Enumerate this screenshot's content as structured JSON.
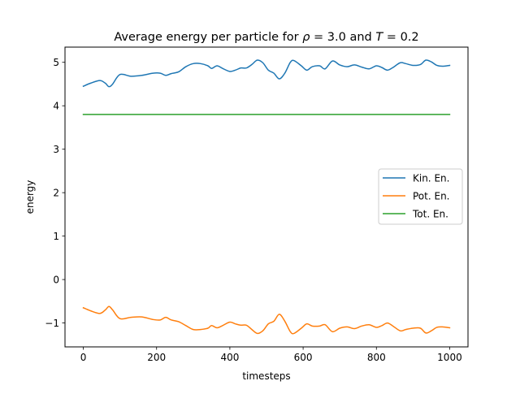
{
  "chart_data": {
    "type": "line",
    "title_parts": {
      "prefix": "Average energy per particle for ",
      "rho_symbol": "ρ",
      "rho_value": " = 3.0 and ",
      "t_symbol": "T",
      "t_value": " = 0.2"
    },
    "xlabel": "timesteps",
    "ylabel": "energy",
    "xlim": [
      -50,
      1050
    ],
    "ylim": [
      -1.55,
      5.35
    ],
    "x_ticks": [
      0,
      200,
      400,
      600,
      800,
      1000
    ],
    "x_tick_labels": [
      "0",
      "200",
      "400",
      "600",
      "800",
      "1000"
    ],
    "y_ticks": [
      -1,
      0,
      1,
      2,
      3,
      4,
      5
    ],
    "y_tick_labels": [
      "−1",
      "0",
      "1",
      "2",
      "3",
      "4",
      "5"
    ],
    "grid": false,
    "legend_position": "center-right",
    "series": [
      {
        "name": "Kin. En.",
        "color": "#1f77b4",
        "x": [
          0,
          20,
          45,
          60,
          70,
          80,
          100,
          130,
          160,
          190,
          210,
          225,
          240,
          260,
          280,
          300,
          320,
          340,
          350,
          365,
          380,
          400,
          415,
          430,
          445,
          460,
          475,
          490,
          505,
          520,
          535,
          550,
          565,
          575,
          595,
          610,
          625,
          645,
          660,
          680,
          700,
          720,
          740,
          760,
          780,
          800,
          815,
          830,
          845,
          865,
          880,
          900,
          920,
          935,
          950,
          965,
          980,
          1000
        ],
        "y": [
          4.45,
          4.52,
          4.58,
          4.52,
          4.44,
          4.5,
          4.72,
          4.68,
          4.7,
          4.75,
          4.75,
          4.7,
          4.74,
          4.78,
          4.9,
          4.97,
          4.97,
          4.92,
          4.86,
          4.92,
          4.86,
          4.79,
          4.82,
          4.87,
          4.87,
          4.95,
          5.05,
          4.99,
          4.82,
          4.75,
          4.62,
          4.75,
          5.0,
          5.04,
          4.92,
          4.82,
          4.9,
          4.92,
          4.85,
          5.03,
          4.94,
          4.9,
          4.94,
          4.89,
          4.85,
          4.92,
          4.88,
          4.82,
          4.88,
          4.99,
          4.97,
          4.93,
          4.95,
          5.05,
          5.01,
          4.93,
          4.91,
          4.93
        ]
      },
      {
        "name": "Pot. En.",
        "color": "#ff7f0e",
        "x": [
          0,
          20,
          45,
          60,
          70,
          80,
          100,
          130,
          160,
          190,
          210,
          225,
          240,
          260,
          280,
          300,
          320,
          340,
          350,
          365,
          380,
          400,
          415,
          430,
          445,
          460,
          475,
          490,
          505,
          520,
          535,
          550,
          565,
          575,
          595,
          610,
          625,
          645,
          660,
          680,
          700,
          720,
          740,
          760,
          780,
          800,
          815,
          830,
          845,
          865,
          880,
          900,
          920,
          935,
          950,
          965,
          980,
          1000
        ],
        "y": [
          -0.65,
          -0.72,
          -0.78,
          -0.7,
          -0.62,
          -0.7,
          -0.9,
          -0.87,
          -0.86,
          -0.92,
          -0.93,
          -0.87,
          -0.93,
          -0.97,
          -1.06,
          -1.15,
          -1.15,
          -1.12,
          -1.06,
          -1.11,
          -1.06,
          -0.98,
          -1.02,
          -1.05,
          -1.05,
          -1.15,
          -1.24,
          -1.18,
          -1.02,
          -0.96,
          -0.8,
          -0.96,
          -1.2,
          -1.24,
          -1.12,
          -1.02,
          -1.07,
          -1.07,
          -1.04,
          -1.2,
          -1.12,
          -1.09,
          -1.13,
          -1.07,
          -1.04,
          -1.1,
          -1.06,
          -1.0,
          -1.07,
          -1.18,
          -1.15,
          -1.12,
          -1.12,
          -1.23,
          -1.18,
          -1.1,
          -1.09,
          -1.11
        ]
      },
      {
        "name": "Tot. En.",
        "color": "#2ca02c",
        "x": [
          0,
          1000
        ],
        "y": [
          3.8,
          3.8
        ]
      }
    ]
  }
}
